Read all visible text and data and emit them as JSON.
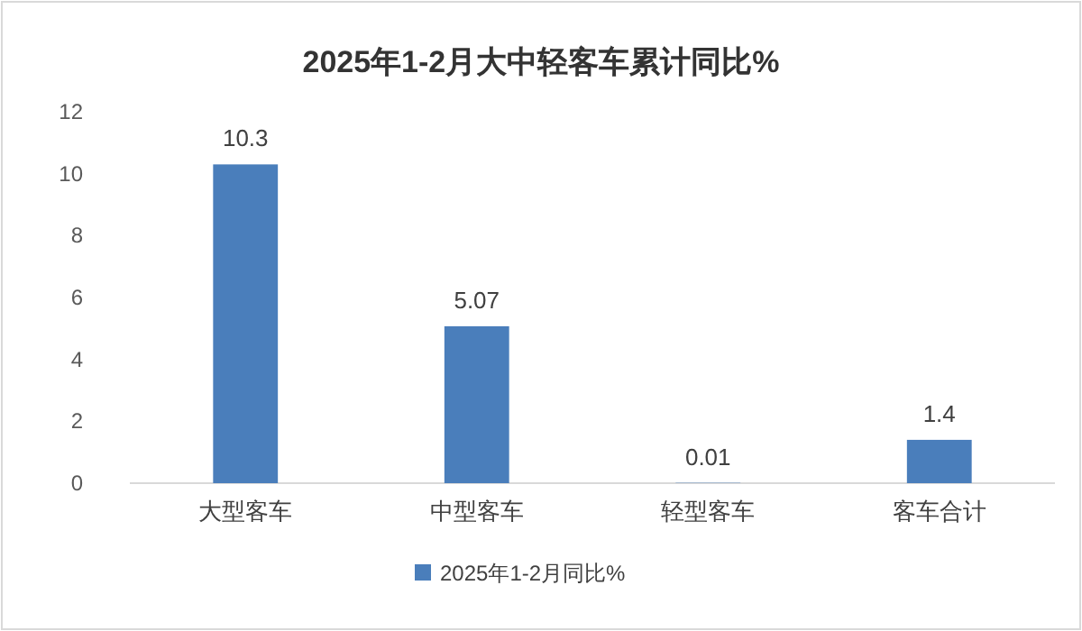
{
  "chart_data": {
    "type": "bar",
    "title": "2025年1-2月大中轻客车累计同比%",
    "categories": [
      "大型客车",
      "中型客车",
      "轻型客车",
      "客车合计"
    ],
    "series": [
      {
        "name": "2025年1-2月同比%",
        "color": "#4a7ebb",
        "values": [
          10.3,
          5.07,
          0.01,
          1.4
        ]
      }
    ],
    "ylim": [
      0,
      12
    ],
    "yticks": [
      0,
      2,
      4,
      6,
      8,
      10,
      12
    ],
    "data_labels": true,
    "legend": "bottom",
    "grid": false
  }
}
